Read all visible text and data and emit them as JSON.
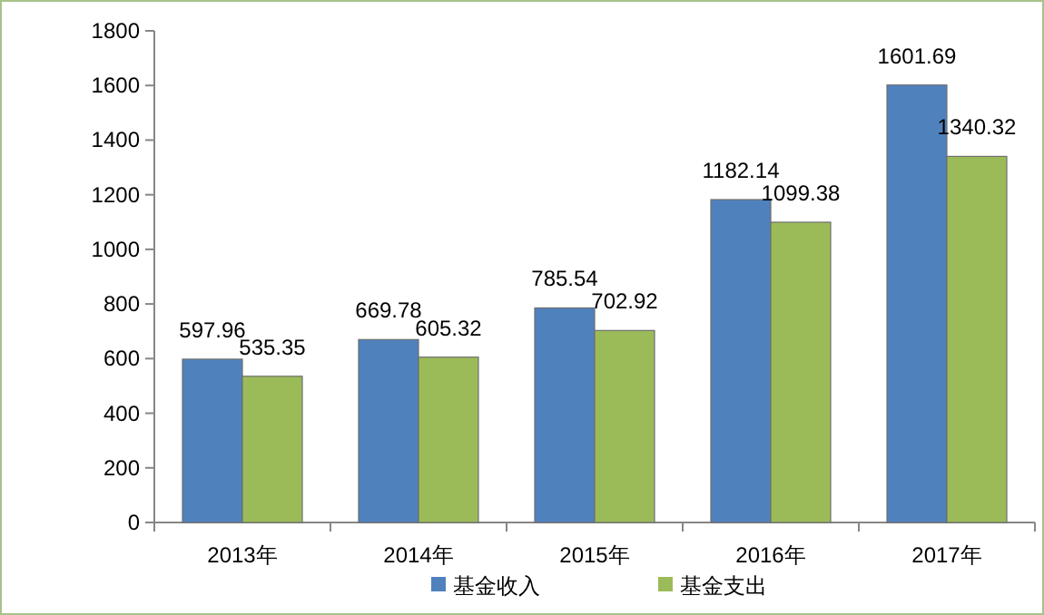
{
  "chart_data": {
    "type": "bar",
    "categories": [
      "2013年",
      "2014年",
      "2015年",
      "2016年",
      "2017年"
    ],
    "series": [
      {
        "name": "基金收入",
        "color": "#4f81bd",
        "values": [
          597.96,
          669.78,
          785.54,
          1182.14,
          1601.69
        ]
      },
      {
        "name": "基金支出",
        "color": "#9bbb59",
        "values": [
          535.35,
          605.32,
          702.92,
          1099.38,
          1340.32
        ]
      }
    ],
    "ylim": [
      0,
      1800
    ],
    "yticks": [
      0,
      200,
      400,
      600,
      800,
      1000,
      1200,
      1400,
      1600,
      1800
    ],
    "data_labels": true,
    "legend": "bottom",
    "grid": false
  }
}
